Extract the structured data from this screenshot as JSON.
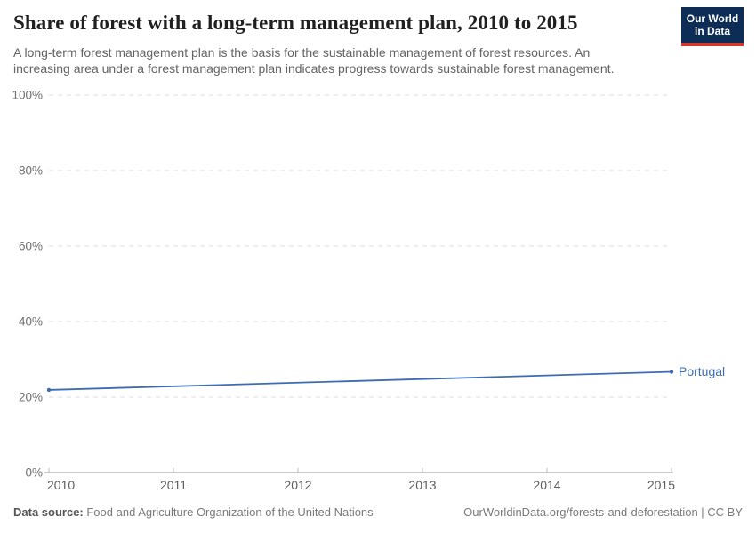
{
  "header": {
    "title": "Share of forest with a long-term management plan, 2010 to 2015",
    "subtitle": "A long-term forest management plan is the basis for the sustainable management of forest resources. An increasing area under a forest management plan indicates progress towards sustainable forest management.",
    "logo": {
      "line1": "Our World",
      "line2": "in Data",
      "bg_color": "#0d2d57",
      "accent_color": "#d7362c"
    }
  },
  "chart_data": {
    "type": "line",
    "title": "Share of forest with a long-term management plan, 2010 to 2015",
    "x": [
      2010,
      2015
    ],
    "series": [
      {
        "name": "Portugal",
        "values": [
          21.9,
          26.7
        ],
        "color": "#3d6cb5"
      }
    ],
    "xticks": [
      2010,
      2011,
      2012,
      2013,
      2014,
      2015
    ],
    "yticks": [
      0,
      20,
      40,
      60,
      80,
      100
    ],
    "ytick_suffix": "%",
    "xlim": [
      2010,
      2015
    ],
    "ylim": [
      0,
      100
    ],
    "grid": "horizontal-dashed",
    "legend_position": "end-of-line-label",
    "colors": {
      "gridline": "#dcdcdc",
      "axis_line": "#9a9a9a",
      "tick_mark": "#bdbdbd",
      "y_label": "#6e6e6e",
      "x_label": "#5e5e5e"
    }
  },
  "footer": {
    "source_label": "Data source:",
    "source_text": " Food and Agriculture Organization of the United Nations",
    "link_text": "OurWorldinData.org/forests-and-deforestation | CC BY"
  }
}
